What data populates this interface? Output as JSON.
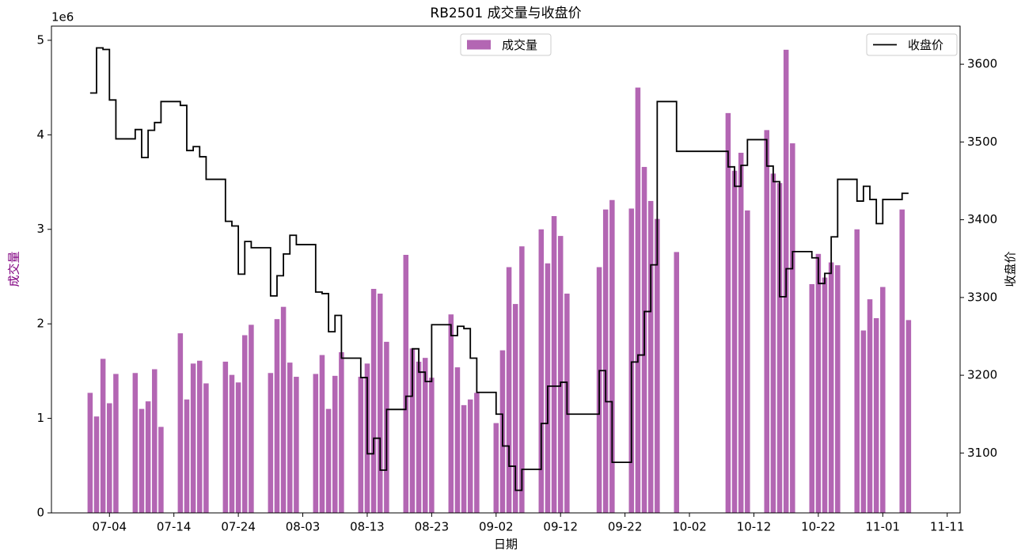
{
  "chart_data": {
    "type": "bar",
    "title": "RB2501 成交量与收盘价",
    "xlabel": "日期",
    "ylabel": "成交量",
    "ylabel_color": "#800080",
    "y2label": "收盘价",
    "y_offset_label": "1e6",
    "x": [
      "07-01",
      "07-02",
      "07-03",
      "07-04",
      "07-05",
      "07-08",
      "07-09",
      "07-10",
      "07-11",
      "07-12",
      "07-15",
      "07-16",
      "07-17",
      "07-18",
      "07-19",
      "07-22",
      "07-23",
      "07-24",
      "07-25",
      "07-26",
      "07-29",
      "07-30",
      "07-31",
      "08-01",
      "08-02",
      "08-05",
      "08-06",
      "08-07",
      "08-08",
      "08-09",
      "08-12",
      "08-13",
      "08-14",
      "08-15",
      "08-16",
      "08-19",
      "08-20",
      "08-21",
      "08-22",
      "08-23",
      "08-26",
      "08-27",
      "08-28",
      "08-29",
      "08-30",
      "09-02",
      "09-03",
      "09-04",
      "09-05",
      "09-06",
      "09-09",
      "09-10",
      "09-11",
      "09-12",
      "09-13",
      "09-18",
      "09-19",
      "09-20",
      "09-23",
      "09-24",
      "09-25",
      "09-26",
      "09-27",
      "09-30",
      "10-08",
      "10-09",
      "10-10",
      "10-11",
      "10-14",
      "10-15",
      "10-16",
      "10-17",
      "10-18",
      "10-21",
      "10-22",
      "10-23",
      "10-24",
      "10-25",
      "10-28",
      "10-29",
      "10-30",
      "10-31",
      "11-01",
      "11-04",
      "11-05"
    ],
    "series": [
      {
        "name": "成交量",
        "color": "#b366b3",
        "legend": "upper center",
        "values": [
          1.27,
          1.02,
          1.63,
          1.16,
          1.47,
          1.48,
          1.1,
          1.18,
          1.52,
          0.91,
          1.9,
          1.2,
          1.58,
          1.61,
          1.37,
          1.6,
          1.46,
          1.38,
          1.88,
          1.99,
          1.48,
          2.05,
          2.18,
          1.59,
          1.44,
          1.47,
          1.67,
          1.1,
          1.45,
          1.7,
          1.44,
          1.58,
          2.37,
          2.32,
          1.81,
          2.73,
          1.74,
          1.6,
          1.64,
          1.43,
          2.1,
          1.54,
          1.14,
          1.2,
          1.27,
          0.95,
          1.72,
          2.6,
          2.21,
          2.82,
          3.0,
          2.64,
          3.14,
          2.93,
          2.32,
          2.6,
          3.21,
          3.31,
          3.22,
          4.5,
          3.66,
          3.3,
          3.11,
          2.76,
          4.23,
          3.62,
          3.81,
          3.2,
          4.05,
          3.59,
          3.49,
          4.9,
          3.91,
          2.42,
          2.74,
          2.49,
          2.65,
          2.62,
          3.0,
          1.93,
          2.26,
          2.06,
          2.39,
          3.21,
          2.04
        ]
      },
      {
        "name": "收盘价",
        "color": "#000000",
        "type": "line",
        "drawstyle": "steps-post",
        "axis": "y2",
        "legend": "upper right",
        "values": [
          3563,
          3621,
          3619,
          3554,
          3504,
          3516,
          3480,
          3515,
          3525,
          3552,
          3547,
          3489,
          3494,
          3481,
          3452,
          3398,
          3392,
          3330,
          3372,
          3364,
          3302,
          3328,
          3356,
          3380,
          3368,
          3307,
          3305,
          3256,
          3277,
          3222,
          3197,
          3099,
          3119,
          3078,
          3156,
          3173,
          3234,
          3204,
          3192,
          3265,
          3251,
          3263,
          3260,
          3222,
          3178,
          3150,
          3109,
          3083,
          3052,
          3079,
          3138,
          3186,
          3186,
          3191,
          3150,
          3206,
          3166,
          3088,
          3217,
          3226,
          3282,
          3342,
          3552,
          3488,
          3468,
          3443,
          3470,
          3503,
          3469,
          3449,
          3301,
          3337,
          3359,
          3351,
          3318,
          3331,
          3378,
          3452,
          3424,
          3443,
          3426,
          3395,
          3426,
          3434,
          3434
        ]
      }
    ],
    "xlim": [
      "06-25",
      "11-13"
    ],
    "xticks": [
      "07-04",
      "07-14",
      "07-24",
      "08-03",
      "08-13",
      "08-23",
      "09-02",
      "09-12",
      "09-22",
      "10-02",
      "10-12",
      "10-22",
      "11-01",
      "11-11"
    ],
    "ylim": [
      0,
      5.15
    ],
    "yticks": [
      0,
      1,
      2,
      3,
      4,
      5
    ],
    "y2lim": [
      3023,
      3649
    ],
    "y2ticks": [
      3100,
      3200,
      3300,
      3400,
      3500,
      3600
    ]
  }
}
